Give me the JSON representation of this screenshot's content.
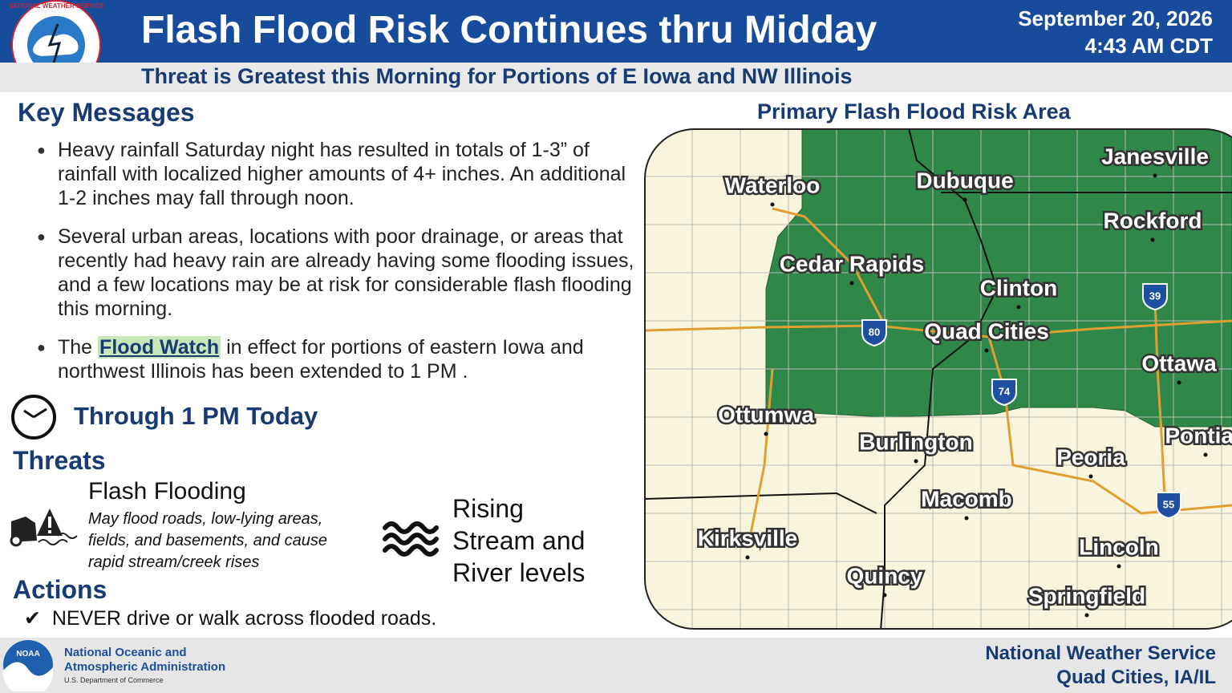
{
  "header": {
    "title": "Flash Flood Risk Continues thru Midday",
    "subtitle": "Threat is Greatest this Morning for Portions of E Iowa and NW Illinois",
    "date": "September 20, 2026",
    "time": "4:43 AM CDT",
    "logo_text": "NATIONAL WEATHER SERVICE"
  },
  "key_messages": {
    "heading": "Key Messages",
    "bullets": [
      {
        "text": "Heavy rainfall Saturday night has resulted in totals of 1-3” of rainfall with localized higher amounts of 4+ inches. An additional 1-2 inches may fall through noon."
      },
      {
        "text": "Several urban areas, locations with poor drainage, or areas that recently had heavy rain are already having some flooding issues, and a few locations may be at risk for considerable flash flooding this morning."
      },
      {
        "before": "The",
        "link": "Flood Watch",
        "after": "in effect for portions of eastern Iowa and northwest Illinois has been extended to 1 PM ."
      }
    ]
  },
  "timing": "Through 1 PM Today",
  "threats": {
    "heading": "Threats",
    "items": [
      {
        "title": "Flash Flooding",
        "description": "May flood roads, low-lying areas, fields, and basements, and cause rapid stream/creek rises"
      },
      {
        "title": "Rising Stream and River levels"
      }
    ]
  },
  "actions": {
    "heading": "Actions",
    "items": [
      "NEVER drive or walk across flooded roads."
    ]
  },
  "map": {
    "title": "Primary Flash Flood Risk Area",
    "cities": [
      "Waterloo",
      "Dubuque",
      "Janesville",
      "Rockford",
      "Cedar Rapids",
      "Clinton",
      "Quad Cities",
      "Ottawa",
      "Ottumwa",
      "Burlington",
      "Peoria",
      "Pontiac",
      "Macomb",
      "Kirksville",
      "Lincoln",
      "Quincy",
      "Springfield"
    ],
    "interstates": [
      "80",
      "74",
      "39",
      "55"
    ]
  },
  "footer": {
    "noaa_logo": "NOAA",
    "agency_line1": "National Oceanic and",
    "agency_line2": "Atmospheric Administration",
    "department": "U.S. Department of Commerce",
    "nws": "National Weather Service",
    "office": "Quad Cities, IA/IL"
  }
}
